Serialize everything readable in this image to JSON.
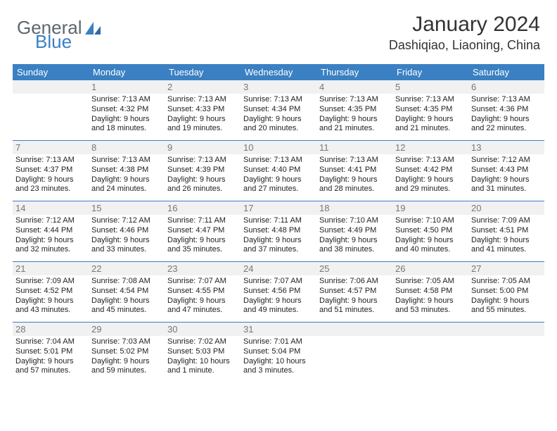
{
  "brand": {
    "part1": "General",
    "part2": "Blue"
  },
  "title": "January 2024",
  "location": "Dashiqiao, Liaoning, China",
  "colors": {
    "header_bg": "#3a80c3",
    "num_bg": "#f1f1f1",
    "rule": "#3a80c3",
    "text": "#222222",
    "num_text": "#777777"
  },
  "day_names": [
    "Sunday",
    "Monday",
    "Tuesday",
    "Wednesday",
    "Thursday",
    "Friday",
    "Saturday"
  ],
  "weeks": [
    {
      "nums": [
        "",
        "1",
        "2",
        "3",
        "4",
        "5",
        "6"
      ],
      "data": [
        null,
        {
          "sunrise": "7:13 AM",
          "sunset": "4:32 PM",
          "daylight": "9 hours and 18 minutes."
        },
        {
          "sunrise": "7:13 AM",
          "sunset": "4:33 PM",
          "daylight": "9 hours and 19 minutes."
        },
        {
          "sunrise": "7:13 AM",
          "sunset": "4:34 PM",
          "daylight": "9 hours and 20 minutes."
        },
        {
          "sunrise": "7:13 AM",
          "sunset": "4:35 PM",
          "daylight": "9 hours and 21 minutes."
        },
        {
          "sunrise": "7:13 AM",
          "sunset": "4:35 PM",
          "daylight": "9 hours and 21 minutes."
        },
        {
          "sunrise": "7:13 AM",
          "sunset": "4:36 PM",
          "daylight": "9 hours and 22 minutes."
        }
      ]
    },
    {
      "nums": [
        "7",
        "8",
        "9",
        "10",
        "11",
        "12",
        "13"
      ],
      "data": [
        {
          "sunrise": "7:13 AM",
          "sunset": "4:37 PM",
          "daylight": "9 hours and 23 minutes."
        },
        {
          "sunrise": "7:13 AM",
          "sunset": "4:38 PM",
          "daylight": "9 hours and 24 minutes."
        },
        {
          "sunrise": "7:13 AM",
          "sunset": "4:39 PM",
          "daylight": "9 hours and 26 minutes."
        },
        {
          "sunrise": "7:13 AM",
          "sunset": "4:40 PM",
          "daylight": "9 hours and 27 minutes."
        },
        {
          "sunrise": "7:13 AM",
          "sunset": "4:41 PM",
          "daylight": "9 hours and 28 minutes."
        },
        {
          "sunrise": "7:13 AM",
          "sunset": "4:42 PM",
          "daylight": "9 hours and 29 minutes."
        },
        {
          "sunrise": "7:12 AM",
          "sunset": "4:43 PM",
          "daylight": "9 hours and 31 minutes."
        }
      ]
    },
    {
      "nums": [
        "14",
        "15",
        "16",
        "17",
        "18",
        "19",
        "20"
      ],
      "data": [
        {
          "sunrise": "7:12 AM",
          "sunset": "4:44 PM",
          "daylight": "9 hours and 32 minutes."
        },
        {
          "sunrise": "7:12 AM",
          "sunset": "4:46 PM",
          "daylight": "9 hours and 33 minutes."
        },
        {
          "sunrise": "7:11 AM",
          "sunset": "4:47 PM",
          "daylight": "9 hours and 35 minutes."
        },
        {
          "sunrise": "7:11 AM",
          "sunset": "4:48 PM",
          "daylight": "9 hours and 37 minutes."
        },
        {
          "sunrise": "7:10 AM",
          "sunset": "4:49 PM",
          "daylight": "9 hours and 38 minutes."
        },
        {
          "sunrise": "7:10 AM",
          "sunset": "4:50 PM",
          "daylight": "9 hours and 40 minutes."
        },
        {
          "sunrise": "7:09 AM",
          "sunset": "4:51 PM",
          "daylight": "9 hours and 41 minutes."
        }
      ]
    },
    {
      "nums": [
        "21",
        "22",
        "23",
        "24",
        "25",
        "26",
        "27"
      ],
      "data": [
        {
          "sunrise": "7:09 AM",
          "sunset": "4:52 PM",
          "daylight": "9 hours and 43 minutes."
        },
        {
          "sunrise": "7:08 AM",
          "sunset": "4:54 PM",
          "daylight": "9 hours and 45 minutes."
        },
        {
          "sunrise": "7:07 AM",
          "sunset": "4:55 PM",
          "daylight": "9 hours and 47 minutes."
        },
        {
          "sunrise": "7:07 AM",
          "sunset": "4:56 PM",
          "daylight": "9 hours and 49 minutes."
        },
        {
          "sunrise": "7:06 AM",
          "sunset": "4:57 PM",
          "daylight": "9 hours and 51 minutes."
        },
        {
          "sunrise": "7:05 AM",
          "sunset": "4:58 PM",
          "daylight": "9 hours and 53 minutes."
        },
        {
          "sunrise": "7:05 AM",
          "sunset": "5:00 PM",
          "daylight": "9 hours and 55 minutes."
        }
      ]
    },
    {
      "nums": [
        "28",
        "29",
        "30",
        "31",
        "",
        "",
        ""
      ],
      "data": [
        {
          "sunrise": "7:04 AM",
          "sunset": "5:01 PM",
          "daylight": "9 hours and 57 minutes."
        },
        {
          "sunrise": "7:03 AM",
          "sunset": "5:02 PM",
          "daylight": "9 hours and 59 minutes."
        },
        {
          "sunrise": "7:02 AM",
          "sunset": "5:03 PM",
          "daylight": "10 hours and 1 minute."
        },
        {
          "sunrise": "7:01 AM",
          "sunset": "5:04 PM",
          "daylight": "10 hours and 3 minutes."
        },
        null,
        null,
        null
      ]
    }
  ]
}
